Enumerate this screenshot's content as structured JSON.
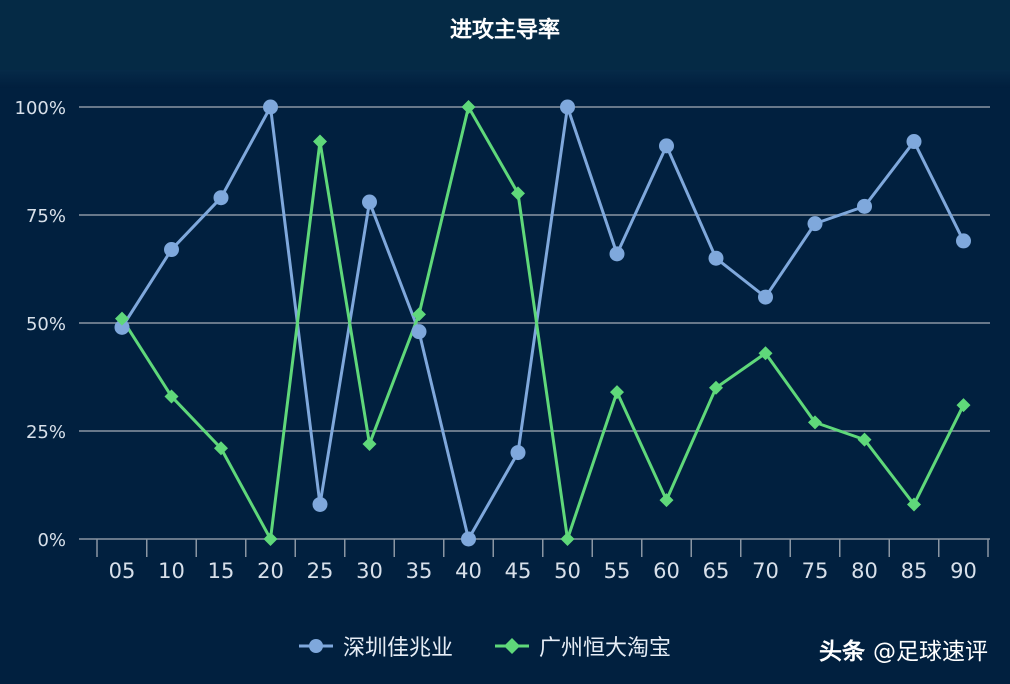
{
  "chart_data": {
    "type": "line",
    "title": "进攻主导率",
    "categories": [
      "05",
      "10",
      "15",
      "20",
      "25",
      "30",
      "35",
      "40",
      "45",
      "50",
      "55",
      "60",
      "65",
      "70",
      "75",
      "80",
      "85",
      "90"
    ],
    "y_ticks": [
      "0%",
      "25%",
      "50%",
      "75%",
      "100%"
    ],
    "ylim": [
      0,
      100
    ],
    "grid": true,
    "legend_position": "bottom",
    "series": [
      {
        "name": "深圳佳兆业",
        "color": "#7fa8dc",
        "marker": "circle",
        "values": [
          49,
          67,
          79,
          100,
          8,
          78,
          48,
          0,
          20,
          100,
          66,
          91,
          65,
          56,
          73,
          77,
          92,
          69
        ]
      },
      {
        "name": "广州恒大淘宝",
        "color": "#5fd87a",
        "marker": "diamond",
        "values": [
          51,
          33,
          21,
          0,
          92,
          22,
          52,
          100,
          80,
          0,
          34,
          9,
          35,
          43,
          27,
          23,
          8,
          31
        ]
      }
    ]
  },
  "watermark": {
    "brand": "头条",
    "handle": "@足球速评"
  }
}
